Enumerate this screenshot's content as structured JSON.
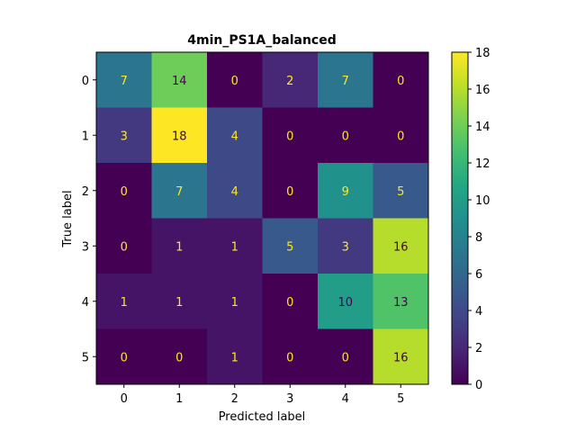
{
  "chart_data": {
    "type": "heatmap",
    "title": "4min_PS1A_balanced",
    "xlabel": "Predicted label",
    "ylabel": "True label",
    "x_categories": [
      "0",
      "1",
      "2",
      "3",
      "4",
      "5"
    ],
    "y_categories": [
      "0",
      "1",
      "2",
      "3",
      "4",
      "5"
    ],
    "values": [
      [
        7,
        14,
        0,
        2,
        7,
        0
      ],
      [
        3,
        18,
        4,
        0,
        0,
        0
      ],
      [
        0,
        7,
        4,
        0,
        9,
        5
      ],
      [
        0,
        1,
        1,
        5,
        3,
        16
      ],
      [
        1,
        1,
        1,
        0,
        10,
        13
      ],
      [
        0,
        0,
        1,
        0,
        0,
        16
      ]
    ],
    "colorbar": {
      "colormap": "viridis",
      "range": [
        0,
        18
      ],
      "ticks": [
        "0",
        "2",
        "4",
        "6",
        "8",
        "10",
        "12",
        "14",
        "16",
        "18"
      ]
    },
    "grid": false,
    "legend": "colorbar right"
  }
}
